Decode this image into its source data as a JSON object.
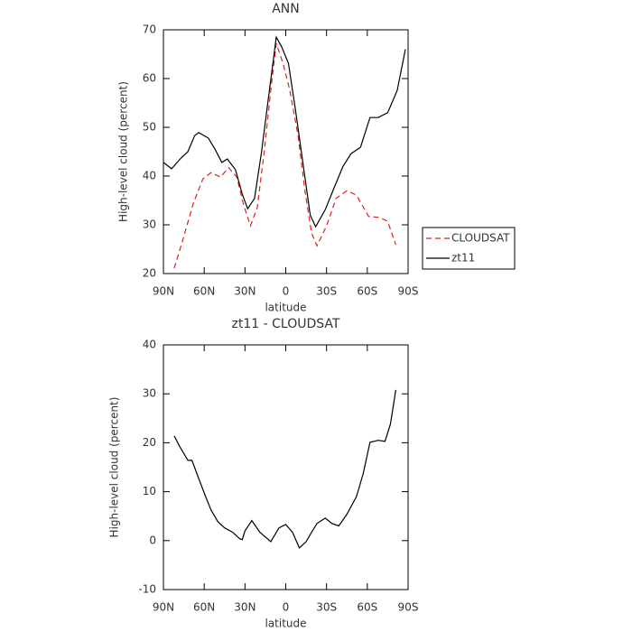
{
  "chart_data": [
    {
      "type": "line",
      "title": "ANN",
      "x_label": "latitude",
      "y_label": "High-level cloud (percent)",
      "xlim": [
        90,
        -90
      ],
      "ylim": [
        20,
        70
      ],
      "xticks": [
        {
          "value": 90,
          "label": "90N"
        },
        {
          "value": 60,
          "label": "60N"
        },
        {
          "value": 30,
          "label": "30N"
        },
        0,
        {
          "value": -30,
          "label": "30S"
        },
        {
          "value": -60,
          "label": "60S"
        },
        {
          "value": -90,
          "label": "90S"
        }
      ],
      "yticks": [
        20,
        30,
        40,
        50,
        60,
        70
      ],
      "legend": "right",
      "series": [
        {
          "name": "CLOUDSAT",
          "color": "#e0201b",
          "line_style": "dashed",
          "x": [
            82,
            75,
            68,
            61,
            55,
            48,
            42,
            36,
            31,
            26,
            21,
            16,
            11,
            7,
            2,
            -3,
            -9,
            -14,
            -19,
            -23,
            -30,
            -37,
            -45,
            -52,
            -61,
            -69,
            -75,
            -81
          ],
          "values": [
            21.1,
            27.6,
            34.4,
            39.4,
            40.7,
            39.8,
            41.7,
            39.8,
            34.1,
            29.8,
            33.5,
            44.6,
            57.6,
            67.2,
            63.1,
            57.6,
            48.3,
            37.2,
            28.3,
            25.7,
            29.8,
            35.4,
            37,
            36.1,
            31.7,
            31.5,
            30.7,
            25.9
          ]
        },
        {
          "name": "zt11",
          "color": "#000000",
          "line_style": "solid",
          "x": [
            90,
            84,
            77,
            72,
            67,
            64,
            57,
            52,
            47,
            43,
            37,
            32,
            28,
            23,
            18,
            12,
            7,
            3,
            -2,
            -7,
            -13,
            -18,
            -22,
            -29,
            -35,
            -42,
            -48,
            -55,
            -62,
            -68,
            -75,
            -82,
            -88
          ],
          "values": [
            42.8,
            41.5,
            43.7,
            45,
            48.3,
            48.9,
            47.8,
            45.5,
            42.8,
            43.5,
            41.3,
            36.3,
            33.3,
            35.4,
            44.6,
            57.6,
            68.5,
            66.5,
            63.1,
            53.9,
            41.9,
            32,
            29.6,
            33.1,
            37.2,
            41.9,
            44.6,
            45.9,
            52,
            52,
            53,
            57.6,
            66
          ]
        }
      ]
    },
    {
      "type": "line",
      "title": "zt11 - CLOUDSAT",
      "x_label": "latitude",
      "y_label": "High-level cloud (percent)",
      "xlim": [
        90,
        -90
      ],
      "ylim": [
        -10,
        40
      ],
      "xticks": [
        {
          "value": 90,
          "label": "90N"
        },
        {
          "value": 60,
          "label": "60N"
        },
        {
          "value": 30,
          "label": "30N"
        },
        0,
        {
          "value": -30,
          "label": "30S"
        },
        {
          "value": -60,
          "label": "60S"
        },
        {
          "value": -90,
          "label": "90S"
        }
      ],
      "yticks": [
        -10,
        0,
        10,
        20,
        30,
        40
      ],
      "color": "#000000",
      "x": [
        82,
        78,
        72,
        69,
        64,
        59,
        55,
        50,
        45,
        39,
        34,
        32,
        30,
        25,
        19,
        11,
        5,
        0,
        -5,
        -10,
        -15,
        -19,
        -23,
        -29,
        -34,
        -39,
        -45,
        -52,
        -57,
        -62,
        -68,
        -73,
        -77,
        -81
      ],
      "values": [
        21.4,
        19.2,
        16.4,
        16.4,
        12.7,
        9,
        6.3,
        3.9,
        2.6,
        1.7,
        0.4,
        0.2,
        2,
        4.1,
        1.7,
        -0.2,
        2.6,
        3.3,
        1.7,
        -1.5,
        -0.2,
        1.7,
        3.5,
        4.6,
        3.5,
        3,
        5.4,
        9,
        13.7,
        20.1,
        20.5,
        20.3,
        23.8,
        30.8
      ]
    }
  ]
}
